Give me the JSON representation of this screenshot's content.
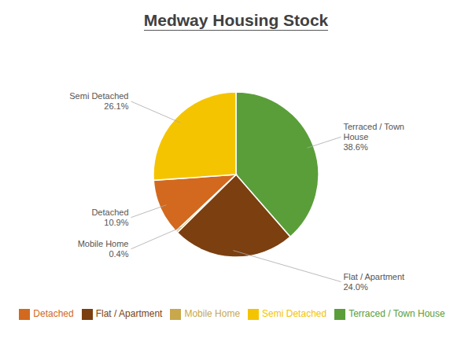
{
  "chart_data": {
    "type": "pie",
    "title": "Medway Housing Stock",
    "categories": [
      "Terraced / Town House",
      "Flat / Apartment",
      "Mobile Home",
      "Detached",
      "Semi Detached"
    ],
    "values": [
      38.6,
      24.0,
      0.4,
      10.9,
      26.1
    ],
    "value_labels": [
      "38.6%",
      "24.0%",
      "0.4%",
      "10.9%",
      "26.1%"
    ],
    "colors": [
      "#5a9e3a",
      "#7b3f10",
      "#c8a84b",
      "#d2691e",
      "#f5c400"
    ],
    "legend": "bottom"
  }
}
